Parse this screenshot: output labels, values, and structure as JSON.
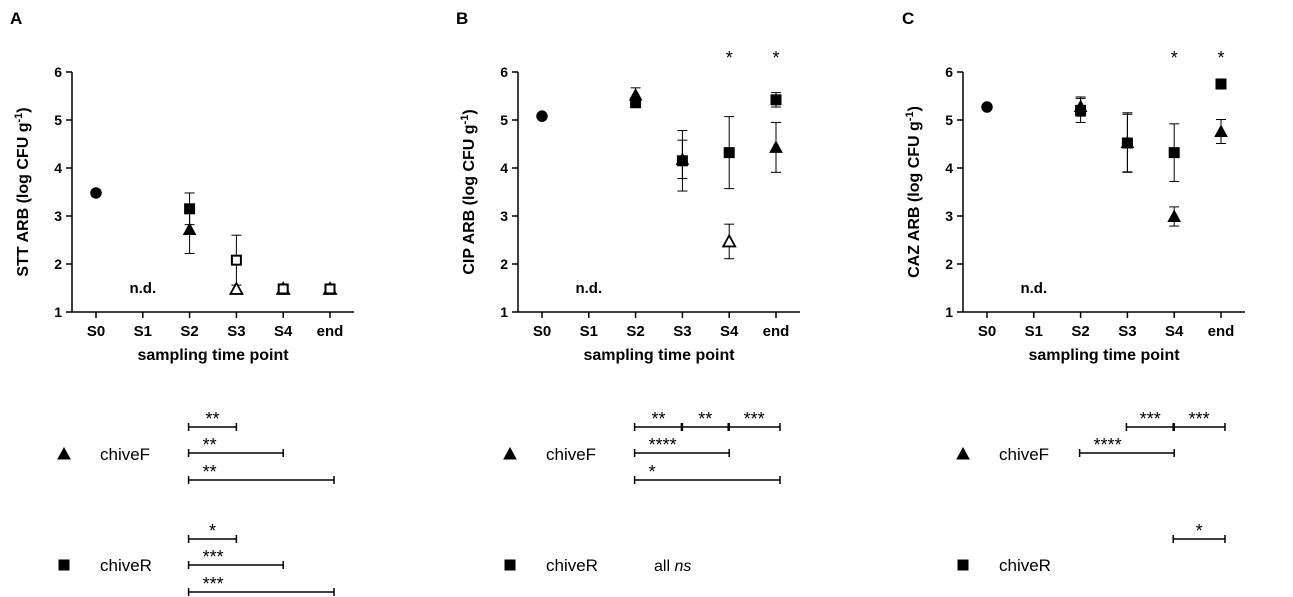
{
  "chart_data": [
    {
      "type": "scatter",
      "panel_label": "A",
      "ylabel": "STT ARB (log CFU g",
      "ylabel_sup": "-1",
      "ylabel_close": ")",
      "xlabel": "sampling time point",
      "categories": [
        "S0",
        "S1",
        "S2",
        "S3",
        "S4",
        "end"
      ],
      "y_ticks": [
        "1",
        "2",
        "3",
        "4",
        "5",
        "6"
      ],
      "ylim": [
        1,
        6
      ],
      "annotations": [
        {
          "category": "S1",
          "text": "n.d.",
          "y": 1.5
        }
      ],
      "stars_above": [],
      "series": [
        {
          "symbol": "circle",
          "points": [
            {
              "x": "S0",
              "y": 3.48,
              "filled": true
            }
          ]
        },
        {
          "symbol": "triangle",
          "points": [
            {
              "x": "S2",
              "y": 2.72,
              "err": 0.5,
              "filled": true
            },
            {
              "x": "S3",
              "y": 1.48,
              "filled": false
            },
            {
              "x": "S4",
              "y": 1.48,
              "filled": false
            },
            {
              "x": "end",
              "y": 1.48,
              "filled": false
            }
          ]
        },
        {
          "symbol": "square",
          "points": [
            {
              "x": "S2",
              "y": 3.15,
              "err": 0.33,
              "filled": true
            },
            {
              "x": "S3",
              "y": 2.08,
              "err": 0.52,
              "filled": false
            },
            {
              "x": "S4",
              "y": 1.48,
              "filled": false
            },
            {
              "x": "end",
              "y": 1.48,
              "filled": false
            }
          ]
        }
      ]
    },
    {
      "type": "scatter",
      "panel_label": "B",
      "ylabel": "CIP ARB (log CFU g",
      "ylabel_sup": "-1",
      "ylabel_close": ")",
      "xlabel": "sampling time point",
      "categories": [
        "S0",
        "S1",
        "S2",
        "S3",
        "S4",
        "end"
      ],
      "y_ticks": [
        "1",
        "2",
        "3",
        "4",
        "5",
        "6"
      ],
      "ylim": [
        1,
        6
      ],
      "annotations": [
        {
          "category": "S1",
          "text": "n.d.",
          "y": 1.5
        }
      ],
      "stars_above": [
        {
          "category": "S4",
          "text": "*"
        },
        {
          "category": "end",
          "text": "*"
        }
      ],
      "series": [
        {
          "symbol": "circle",
          "points": [
            {
              "x": "S0",
              "y": 5.08,
              "filled": true
            }
          ]
        },
        {
          "symbol": "triangle",
          "points": [
            {
              "x": "S2",
              "y": 5.52,
              "err": 0.15,
              "filled": true
            },
            {
              "x": "S3",
              "y": 4.18,
              "err": 0.4,
              "filled": true
            },
            {
              "x": "S4",
              "y": 2.47,
              "err": 0.36,
              "filled": false
            },
            {
              "x": "end",
              "y": 4.43,
              "err": 0.52,
              "filled": true
            }
          ]
        },
        {
          "symbol": "square",
          "points": [
            {
              "x": "S2",
              "y": 5.36,
              "err": 0.1,
              "filled": true
            },
            {
              "x": "S3",
              "y": 4.15,
              "err": 0.63,
              "filled": true
            },
            {
              "x": "S4",
              "y": 4.32,
              "err": 0.75,
              "filled": true
            },
            {
              "x": "end",
              "y": 5.42,
              "err": 0.15,
              "filled": true
            }
          ]
        }
      ]
    },
    {
      "type": "scatter",
      "panel_label": "C",
      "ylabel": "CAZ ARB (log CFU g",
      "ylabel_sup": "-1",
      "ylabel_close": ")",
      "xlabel": "sampling time point",
      "categories": [
        "S0",
        "S1",
        "S2",
        "S3",
        "S4",
        "end"
      ],
      "y_ticks": [
        "1",
        "2",
        "3",
        "4",
        "5",
        "6"
      ],
      "ylim": [
        1,
        6
      ],
      "annotations": [
        {
          "category": "S1",
          "text": "n.d.",
          "y": 1.5
        }
      ],
      "stars_above": [
        {
          "category": "S4",
          "text": "*"
        },
        {
          "category": "end",
          "text": "*"
        }
      ],
      "series": [
        {
          "symbol": "circle",
          "points": [
            {
              "x": "S0",
              "y": 5.27,
              "filled": true
            }
          ]
        },
        {
          "symbol": "triangle",
          "points": [
            {
              "x": "S2",
              "y": 5.28,
              "err": 0.2,
              "filled": true
            },
            {
              "x": "S3",
              "y": 4.53,
              "err": 0.62,
              "filled": true
            },
            {
              "x": "S4",
              "y": 2.99,
              "err": 0.2,
              "filled": true
            },
            {
              "x": "end",
              "y": 4.76,
              "err": 0.25,
              "filled": true
            }
          ]
        },
        {
          "symbol": "square",
          "points": [
            {
              "x": "S2",
              "y": 5.2,
              "err": 0.25,
              "filled": true
            },
            {
              "x": "S3",
              "y": 4.52,
              "err": 0.6,
              "filled": true
            },
            {
              "x": "S4",
              "y": 4.32,
              "err": 0.6,
              "filled": true
            },
            {
              "x": "end",
              "y": 5.75,
              "filled": true
            }
          ]
        }
      ]
    }
  ],
  "legend_rows": [
    {
      "symbol": "triangle",
      "label": "chiveF",
      "panels": [
        {
          "brackets": [
            {
              "from": "S2",
              "to": "S3",
              "text": "**"
            },
            {
              "from": "S2",
              "to": "S4",
              "text": "**"
            },
            {
              "from": "S2",
              "to": "end",
              "text": "**"
            }
          ]
        },
        {
          "brackets": [
            {
              "from": "S2",
              "to": "S3",
              "text": "**"
            },
            {
              "from": "S3",
              "to": "S4",
              "text": "**"
            },
            {
              "from": "S4",
              "to": "end",
              "text": "***"
            },
            {
              "from": "S2",
              "to": "S4",
              "text": "****"
            },
            {
              "from": "S2",
              "to": "end",
              "text": "*"
            }
          ]
        },
        {
          "brackets": [
            {
              "from": "S3",
              "to": "S4",
              "text": "***"
            },
            {
              "from": "S4",
              "to": "end",
              "text": "***"
            },
            {
              "from": "S2",
              "to": "S4",
              "text": "****"
            }
          ]
        }
      ]
    },
    {
      "symbol": "square",
      "label": "chiveR",
      "panels": [
        {
          "brackets": [
            {
              "from": "S2",
              "to": "S3",
              "text": "*"
            },
            {
              "from": "S2",
              "to": "S4",
              "text": "***"
            },
            {
              "from": "S2",
              "to": "end",
              "text": "***"
            }
          ]
        },
        {
          "note_prefix": "all ",
          "note_italic": "ns",
          "brackets": []
        },
        {
          "brackets": [
            {
              "from": "S4",
              "to": "end",
              "text": "*"
            }
          ]
        }
      ]
    }
  ]
}
